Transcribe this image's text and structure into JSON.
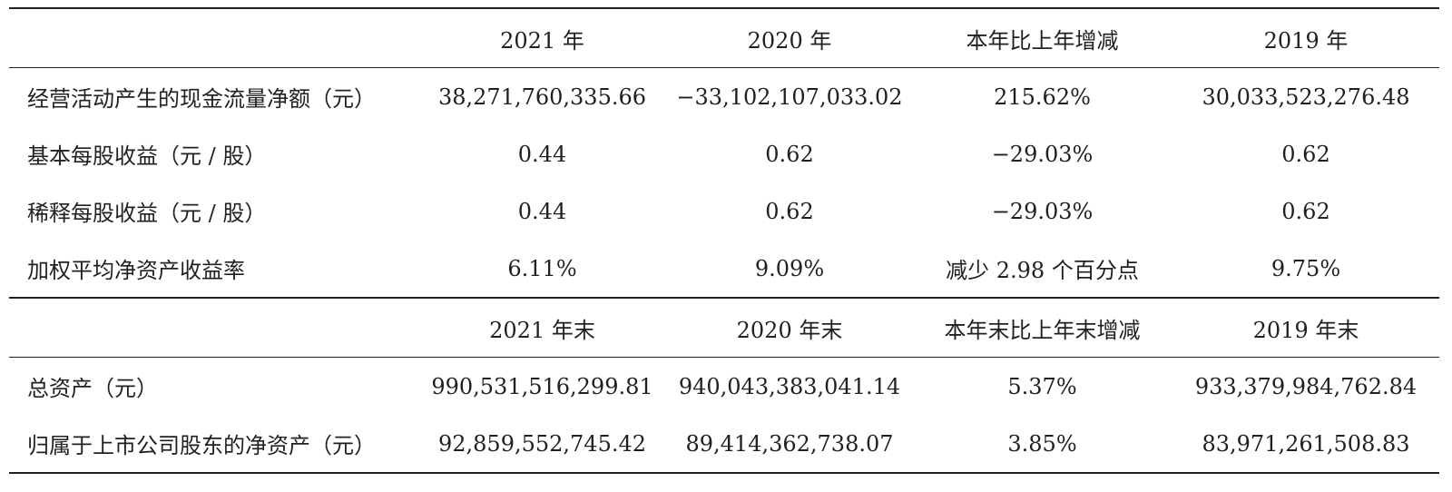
{
  "section1": {
    "headers": [
      "",
      "2021 年",
      "2020 年",
      "本年比上年增减",
      "2019 年"
    ],
    "rows": [
      {
        "label": "经营活动产生的现金流量净额（元）",
        "v2021": "38,271,760,335.66",
        "v2020": "−33,102,107,033.02",
        "change": "215.62%",
        "v2019": "30,033,523,276.48"
      },
      {
        "label": "基本每股收益（元 / 股）",
        "v2021": "0.44",
        "v2020": "0.62",
        "change": "−29.03%",
        "v2019": "0.62"
      },
      {
        "label": "稀释每股收益（元 / 股）",
        "v2021": "0.44",
        "v2020": "0.62",
        "change": "−29.03%",
        "v2019": "0.62"
      },
      {
        "label": "加权平均净资产收益率",
        "v2021": "6.11%",
        "v2020": "9.09%",
        "change": "减少 2.98 个百分点",
        "v2019": "9.75%"
      }
    ]
  },
  "section2": {
    "headers": [
      "",
      "2021 年末",
      "2020 年末",
      "本年末比上年末增减",
      "2019 年末"
    ],
    "rows": [
      {
        "label": "总资产（元）",
        "v2021": "990,531,516,299.81",
        "v2020": "940,043,383,041.14",
        "change": "5.37%",
        "v2019": "933,379,984,762.84"
      },
      {
        "label": "归属于上市公司股东的净资产（元）",
        "v2021": "92,859,552,745.42",
        "v2020": "89,414,362,738.07",
        "change": "3.85%",
        "v2019": "83,971,261,508.83"
      }
    ]
  }
}
